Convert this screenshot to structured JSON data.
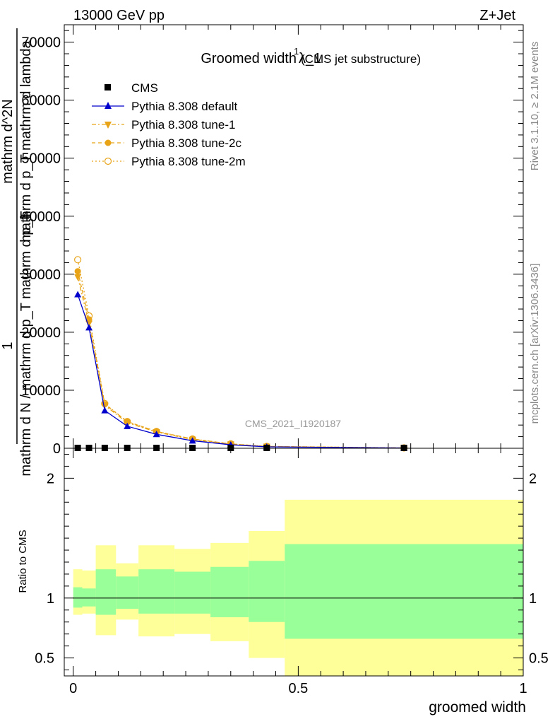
{
  "header": {
    "left": "13000 GeV pp",
    "right": "Z+Jet",
    "title": "Groomed width",
    "title_symbol": "λ_1",
    "title_sup": "1",
    "title_sub": "(CMS jet substructure)"
  },
  "side_labels": {
    "rivet": "Rivet 3.1.10, ≥ 2.1M events",
    "mcplots": "mcplots.cern.ch [arXiv:1306.3436]"
  },
  "watermark": "CMS_2021_I1920187",
  "colors": {
    "cms": "#000000",
    "default": "#0000cc",
    "tune": "#e8a317",
    "band_inner": "#99ff99",
    "band_outer": "#ffff99"
  },
  "chart_data": [
    {
      "type": "line",
      "panel": "main",
      "ylabel_lines": [
        "1",
        "mathrm d N / mathrm d p_T mathrm d p_T",
        "mathrm d^2N",
        "mathrm d p_T mathrm d lambda"
      ],
      "xlim": [
        -0.02,
        1.0
      ],
      "ylim": [
        0,
        73000
      ],
      "yticks": [
        0,
        10000,
        20000,
        30000,
        40000,
        50000,
        60000,
        70000
      ],
      "ytick_labels": [
        "0",
        "10000",
        "20000",
        "30000",
        "40000",
        "50000",
        "60000",
        "70000"
      ],
      "legend_position": "top-left",
      "series": [
        {
          "name": "CMS",
          "style": "data",
          "x": [
            0.01,
            0.035,
            0.07,
            0.12,
            0.185,
            0.265,
            0.35,
            0.43,
            0.735
          ],
          "values": [
            0,
            0,
            0,
            0,
            0,
            0,
            0,
            0,
            0
          ]
        },
        {
          "name": "Pythia 8.308 default",
          "style": "default",
          "x": [
            0.01,
            0.035,
            0.07,
            0.12,
            0.185,
            0.265,
            0.35,
            0.43,
            0.735
          ],
          "values": [
            26500,
            20800,
            6500,
            3800,
            2400,
            1300,
            600,
            250,
            40
          ]
        },
        {
          "name": "Pythia 8.308 tune-1",
          "style": "tune1",
          "x": [
            0.01,
            0.035,
            0.07,
            0.12,
            0.185,
            0.265,
            0.35,
            0.43,
            0.735
          ],
          "values": [
            29500,
            21500,
            7400,
            4400,
            2800,
            1500,
            700,
            300,
            50
          ]
        },
        {
          "name": "Pythia 8.308 tune-2c",
          "style": "tune2c",
          "x": [
            0.01,
            0.035,
            0.07,
            0.12,
            0.185,
            0.265,
            0.35,
            0.43,
            0.735
          ],
          "values": [
            30500,
            22200,
            7600,
            4600,
            2900,
            1600,
            750,
            320,
            60
          ]
        },
        {
          "name": "Pythia 8.308 tune-2m",
          "style": "tune2m",
          "x": [
            0.01,
            0.035,
            0.07,
            0.12,
            0.185,
            0.265,
            0.35,
            0.43,
            0.735
          ],
          "values": [
            32500,
            22800,
            7700,
            4600,
            2900,
            1600,
            760,
            330,
            60
          ]
        }
      ]
    },
    {
      "type": "area",
      "panel": "ratio",
      "ylabel": "Ratio to CMS",
      "xlabel": "groomed width",
      "xlim": [
        -0.02,
        1.0
      ],
      "ylim": [
        0.35,
        2.25
      ],
      "xticks": [
        0,
        0.5,
        1
      ],
      "xtick_labels": [
        "0",
        "0.5",
        "1"
      ],
      "yticks": [
        0.5,
        1,
        2
      ],
      "ytick_labels": [
        "0.5",
        "1",
        "2"
      ],
      "bins": [
        {
          "x0": 0.0,
          "x1": 0.02,
          "inner": [
            0.92,
            1.09
          ],
          "outer": [
            0.86,
            1.24
          ]
        },
        {
          "x0": 0.02,
          "x1": 0.05,
          "inner": [
            0.93,
            1.08
          ],
          "outer": [
            0.87,
            1.23
          ]
        },
        {
          "x0": 0.05,
          "x1": 0.095,
          "inner": [
            0.86,
            1.24
          ],
          "outer": [
            0.69,
            1.44
          ]
        },
        {
          "x0": 0.095,
          "x1": 0.145,
          "inner": [
            0.91,
            1.18
          ],
          "outer": [
            0.82,
            1.29
          ]
        },
        {
          "x0": 0.145,
          "x1": 0.225,
          "inner": [
            0.87,
            1.24
          ],
          "outer": [
            0.68,
            1.44
          ]
        },
        {
          "x0": 0.225,
          "x1": 0.305,
          "inner": [
            0.87,
            1.22
          ],
          "outer": [
            0.7,
            1.41
          ]
        },
        {
          "x0": 0.305,
          "x1": 0.39,
          "inner": [
            0.84,
            1.26
          ],
          "outer": [
            0.64,
            1.46
          ]
        },
        {
          "x0": 0.39,
          "x1": 0.47,
          "inner": [
            0.8,
            1.31
          ],
          "outer": [
            0.5,
            1.56
          ]
        },
        {
          "x0": 0.47,
          "x1": 1.0,
          "inner": [
            0.66,
            1.45
          ],
          "outer": [
            0.35,
            1.82
          ]
        }
      ],
      "reference": 1
    }
  ]
}
